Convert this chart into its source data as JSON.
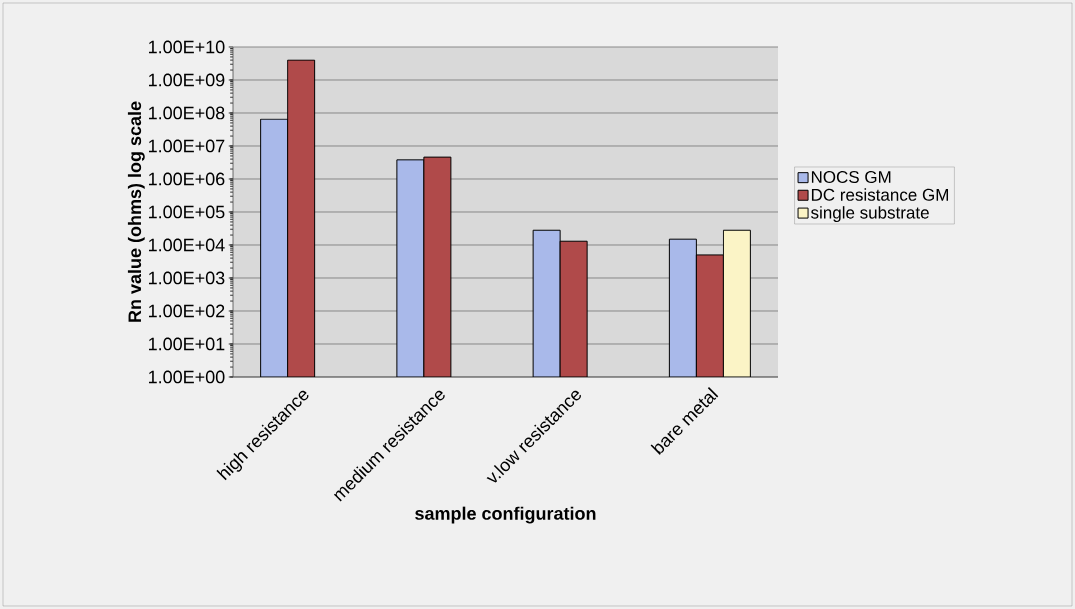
{
  "chart_data": {
    "type": "bar",
    "xlabel": "sample configuration",
    "ylabel": "Rn value (ohms) log scale",
    "categories": [
      "high resistance",
      "medium resistance",
      "v.low resistance",
      "bare metal"
    ],
    "series": [
      {
        "name": "NOCS GM",
        "color": "#a9b9ea",
        "values": [
          65000000,
          3800000,
          28000,
          15000
        ]
      },
      {
        "name": "DC resistance GM",
        "color": "#b04a4a",
        "values": [
          4000000000,
          4600000,
          13000,
          5000
        ]
      },
      {
        "name": "single substrate",
        "color": "#fbf4c6",
        "values": [
          null,
          null,
          null,
          28000
        ]
      }
    ],
    "log": "y",
    "ylim": [
      1,
      10000000000
    ],
    "yticks": [
      {
        "value": 1,
        "label": "1.00E+00"
      },
      {
        "value": 10,
        "label": "1.00E+01"
      },
      {
        "value": 100,
        "label": "1.00E+02"
      },
      {
        "value": 1000,
        "label": "1.00E+03"
      },
      {
        "value": 10000,
        "label": "1.00E+04"
      },
      {
        "value": 100000,
        "label": "1.00E+05"
      },
      {
        "value": 1000000,
        "label": "1.00E+06"
      },
      {
        "value": 10000000,
        "label": "1.00E+07"
      },
      {
        "value": 100000000,
        "label": "1.00E+08"
      },
      {
        "value": 1000000000,
        "label": "1.00E+09"
      },
      {
        "value": 10000000000,
        "label": "1.00E+10"
      }
    ],
    "grid": "y",
    "legend": "right"
  }
}
